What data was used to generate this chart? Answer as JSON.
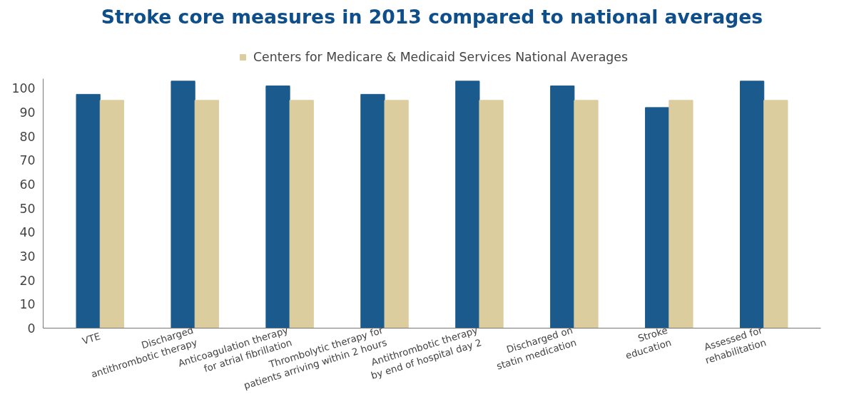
{
  "chart_data": {
    "type": "bar",
    "title": "Stroke core measures in 2013 compared to national averages",
    "categories": [
      "VTE",
      "Discharged antithrombotic therapy",
      "Anticoagulation therapy for atrial fibrillation",
      "Thrombolytic therapy for patients arriving within 2 hours",
      "Antithrombotic therapy by end of hospital day 2",
      "Discharged on statin medication",
      "Stroke education",
      "Assessed for rehabilitation"
    ],
    "series": [
      {
        "color": "#1b5a8c",
        "values": [
          97.5,
          103,
          101,
          97.5,
          103,
          101,
          92,
          103
        ]
      },
      {
        "name": "Centers for Medicare & Medicaid Services National Averages",
        "color": "#dccd9f",
        "values": [
          95,
          95,
          95,
          95,
          95,
          95,
          95,
          95
        ]
      }
    ],
    "ylim": [
      0,
      104
    ],
    "yticks": [
      0,
      10,
      20,
      30,
      40,
      50,
      60,
      70,
      80,
      90,
      100
    ],
    "grid": false,
    "legend": "top"
  }
}
